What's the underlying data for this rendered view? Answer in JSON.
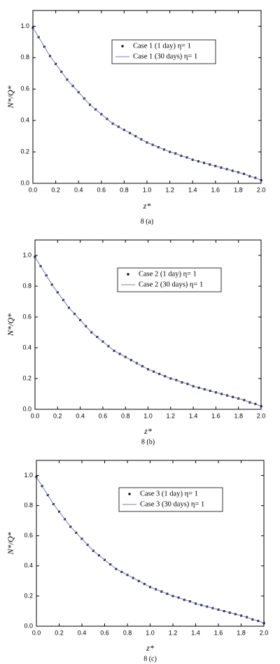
{
  "chart_data": [
    {
      "type": "line",
      "caption": "8 (a)",
      "x_label": "z*",
      "y_label": "N*/Q*",
      "x": [
        0,
        0.05,
        0.1,
        0.15,
        0.2,
        0.25,
        0.3,
        0.35,
        0.4,
        0.45,
        0.5,
        0.55,
        0.6,
        0.65,
        0.7,
        0.75,
        0.8,
        0.85,
        0.9,
        0.95,
        1.0,
        1.05,
        1.1,
        1.15,
        1.2,
        1.25,
        1.3,
        1.35,
        1.4,
        1.45,
        1.5,
        1.55,
        1.6,
        1.65,
        1.7,
        1.75,
        1.8,
        1.85,
        1.9,
        1.95,
        2.0
      ],
      "series": [
        {
          "name": "Case 1 (1 day) η= 1",
          "color": "#000000",
          "mode": "markers",
          "values": [
            0.99,
            0.93,
            0.87,
            0.81,
            0.76,
            0.71,
            0.66,
            0.62,
            0.58,
            0.54,
            0.5,
            0.47,
            0.44,
            0.41,
            0.38,
            0.36,
            0.34,
            0.32,
            0.3,
            0.28,
            0.26,
            0.245,
            0.23,
            0.215,
            0.2,
            0.19,
            0.175,
            0.165,
            0.15,
            0.14,
            0.13,
            0.12,
            0.11,
            0.1,
            0.09,
            0.08,
            0.07,
            0.06,
            0.045,
            0.035,
            0.02
          ]
        },
        {
          "name": "Case 1 (30 days) η= 1",
          "color": "#7a7ac8",
          "mode": "line",
          "values": [
            0.99,
            0.93,
            0.87,
            0.81,
            0.76,
            0.71,
            0.66,
            0.62,
            0.58,
            0.54,
            0.5,
            0.47,
            0.44,
            0.41,
            0.38,
            0.36,
            0.34,
            0.32,
            0.3,
            0.28,
            0.26,
            0.245,
            0.23,
            0.215,
            0.2,
            0.19,
            0.175,
            0.165,
            0.15,
            0.14,
            0.13,
            0.12,
            0.11,
            0.1,
            0.09,
            0.08,
            0.07,
            0.06,
            0.045,
            0.035,
            0.02
          ]
        }
      ],
      "xlim": [
        0,
        2.0
      ],
      "ylim": [
        0,
        1.1
      ],
      "xticks": [
        {
          "value": 0,
          "label": "0.0"
        },
        {
          "value": 0.2,
          "label": "0.2"
        },
        {
          "value": 0.4,
          "label": "0.4"
        },
        {
          "value": 0.6,
          "label": "0.6"
        },
        {
          "value": 0.8,
          "label": "0.8"
        },
        {
          "value": 1.0,
          "label": "1.0"
        },
        {
          "value": 1.2,
          "label": "1.2"
        },
        {
          "value": 1.4,
          "label": "1.4"
        },
        {
          "value": 1.6,
          "label": "1.6"
        },
        {
          "value": 1.8,
          "label": "1.8"
        },
        {
          "value": 2.0,
          "label": "2.0"
        }
      ],
      "yticks": [
        {
          "value": 0,
          "label": "0.0"
        },
        {
          "value": 0.2,
          "label": "0.2"
        },
        {
          "value": 0.4,
          "label": "0.4"
        },
        {
          "value": 0.6,
          "label": "0.6"
        },
        {
          "value": 0.8,
          "label": "0.8"
        },
        {
          "value": 1.0,
          "label": "1.0"
        }
      ]
    },
    {
      "type": "line",
      "caption": "8 (b)",
      "x_label": "z*",
      "y_label": "N*/Q*",
      "x": [
        0,
        0.05,
        0.1,
        0.15,
        0.2,
        0.25,
        0.3,
        0.35,
        0.4,
        0.45,
        0.5,
        0.55,
        0.6,
        0.65,
        0.7,
        0.75,
        0.8,
        0.85,
        0.9,
        0.95,
        1.0,
        1.05,
        1.1,
        1.15,
        1.2,
        1.25,
        1.3,
        1.35,
        1.4,
        1.45,
        1.5,
        1.55,
        1.6,
        1.65,
        1.7,
        1.75,
        1.8,
        1.85,
        1.9,
        1.95,
        2.0
      ],
      "series": [
        {
          "name": "Case 2 (1 day) η= 1",
          "color": "#000000",
          "mode": "markers",
          "values": [
            0.99,
            0.93,
            0.87,
            0.81,
            0.76,
            0.71,
            0.66,
            0.62,
            0.58,
            0.54,
            0.5,
            0.47,
            0.44,
            0.41,
            0.38,
            0.36,
            0.34,
            0.32,
            0.3,
            0.28,
            0.26,
            0.245,
            0.23,
            0.215,
            0.2,
            0.19,
            0.175,
            0.165,
            0.15,
            0.14,
            0.13,
            0.12,
            0.11,
            0.1,
            0.09,
            0.08,
            0.07,
            0.06,
            0.045,
            0.035,
            0.02
          ]
        },
        {
          "name": "Case 2 (30 days) η= 1",
          "color": "#7a7ac8",
          "mode": "line",
          "values": [
            0.99,
            0.93,
            0.87,
            0.81,
            0.76,
            0.71,
            0.66,
            0.62,
            0.58,
            0.54,
            0.5,
            0.47,
            0.44,
            0.41,
            0.38,
            0.36,
            0.34,
            0.32,
            0.3,
            0.28,
            0.26,
            0.245,
            0.23,
            0.215,
            0.2,
            0.19,
            0.175,
            0.165,
            0.15,
            0.14,
            0.13,
            0.12,
            0.11,
            0.1,
            0.09,
            0.08,
            0.07,
            0.06,
            0.045,
            0.035,
            0.02
          ]
        }
      ],
      "xlim": [
        0,
        2.0
      ],
      "ylim": [
        0,
        1.1
      ],
      "xticks": [
        {
          "value": 0,
          "label": "0.0"
        },
        {
          "value": 0.2,
          "label": "0.2"
        },
        {
          "value": 0.4,
          "label": "0.4"
        },
        {
          "value": 0.6,
          "label": "0.6"
        },
        {
          "value": 0.8,
          "label": "0.8"
        },
        {
          "value": 1.0,
          "label": "1.0"
        },
        {
          "value": 1.2,
          "label": "1.2"
        },
        {
          "value": 1.4,
          "label": "1.4"
        },
        {
          "value": 1.6,
          "label": "1.6"
        },
        {
          "value": 1.8,
          "label": "1.8"
        },
        {
          "value": 2.0,
          "label": "2.0"
        }
      ],
      "yticks": [
        {
          "value": 0,
          "label": "0.0"
        },
        {
          "value": 0.2,
          "label": "0.2"
        },
        {
          "value": 0.4,
          "label": "0.4"
        },
        {
          "value": 0.6,
          "label": "0.6"
        },
        {
          "value": 0.8,
          "label": "0.8"
        },
        {
          "value": 1.0,
          "label": "1.0"
        }
      ]
    },
    {
      "type": "line",
      "caption": "8 (c)",
      "x_label": "z*",
      "y_label": "N*/Q*",
      "x": [
        0,
        0.05,
        0.1,
        0.15,
        0.2,
        0.25,
        0.3,
        0.35,
        0.4,
        0.45,
        0.5,
        0.55,
        0.6,
        0.65,
        0.7,
        0.75,
        0.8,
        0.85,
        0.9,
        0.95,
        1.0,
        1.05,
        1.1,
        1.15,
        1.2,
        1.25,
        1.3,
        1.35,
        1.4,
        1.45,
        1.5,
        1.55,
        1.6,
        1.65,
        1.7,
        1.75,
        1.8,
        1.85,
        1.9,
        1.95,
        2.0
      ],
      "series": [
        {
          "name": "Case 3 (1 day) η= 1",
          "color": "#000000",
          "mode": "markers",
          "values": [
            0.99,
            0.93,
            0.87,
            0.81,
            0.76,
            0.71,
            0.66,
            0.62,
            0.58,
            0.54,
            0.5,
            0.47,
            0.44,
            0.41,
            0.38,
            0.36,
            0.34,
            0.32,
            0.3,
            0.28,
            0.26,
            0.245,
            0.23,
            0.215,
            0.2,
            0.19,
            0.175,
            0.165,
            0.15,
            0.14,
            0.13,
            0.12,
            0.11,
            0.1,
            0.09,
            0.08,
            0.07,
            0.06,
            0.045,
            0.035,
            0.02
          ]
        },
        {
          "name": "Case 3 (30 days) η= 1",
          "color": "#7a7ac8",
          "mode": "line",
          "values": [
            0.99,
            0.93,
            0.87,
            0.81,
            0.76,
            0.71,
            0.66,
            0.62,
            0.58,
            0.54,
            0.5,
            0.47,
            0.44,
            0.41,
            0.38,
            0.36,
            0.34,
            0.32,
            0.3,
            0.28,
            0.26,
            0.245,
            0.23,
            0.215,
            0.2,
            0.19,
            0.175,
            0.165,
            0.15,
            0.14,
            0.13,
            0.12,
            0.11,
            0.1,
            0.09,
            0.08,
            0.07,
            0.06,
            0.045,
            0.035,
            0.02
          ]
        }
      ],
      "xlim": [
        0,
        2.0
      ],
      "ylim": [
        0,
        1.1
      ],
      "xticks": [
        {
          "value": 0,
          "label": "0.0"
        },
        {
          "value": 0.2,
          "label": "0.2"
        },
        {
          "value": 0.4,
          "label": "0.4"
        },
        {
          "value": 0.6,
          "label": "0.6"
        },
        {
          "value": 0.8,
          "label": "0.8"
        },
        {
          "value": 1.0,
          "label": "1.0"
        },
        {
          "value": 1.2,
          "label": "1.2"
        },
        {
          "value": 1.4,
          "label": "1.4"
        },
        {
          "value": 1.6,
          "label": "1.6"
        },
        {
          "value": 1.8,
          "label": "1.8"
        },
        {
          "value": 2.0,
          "label": "2.0"
        }
      ],
      "yticks": [
        {
          "value": 0,
          "label": "0.0"
        },
        {
          "value": 0.2,
          "label": "0.2"
        },
        {
          "value": 0.4,
          "label": "0.4"
        },
        {
          "value": 0.6,
          "label": "0.6"
        },
        {
          "value": 0.8,
          "label": "0.8"
        },
        {
          "value": 1.0,
          "label": "1.0"
        }
      ]
    }
  ]
}
